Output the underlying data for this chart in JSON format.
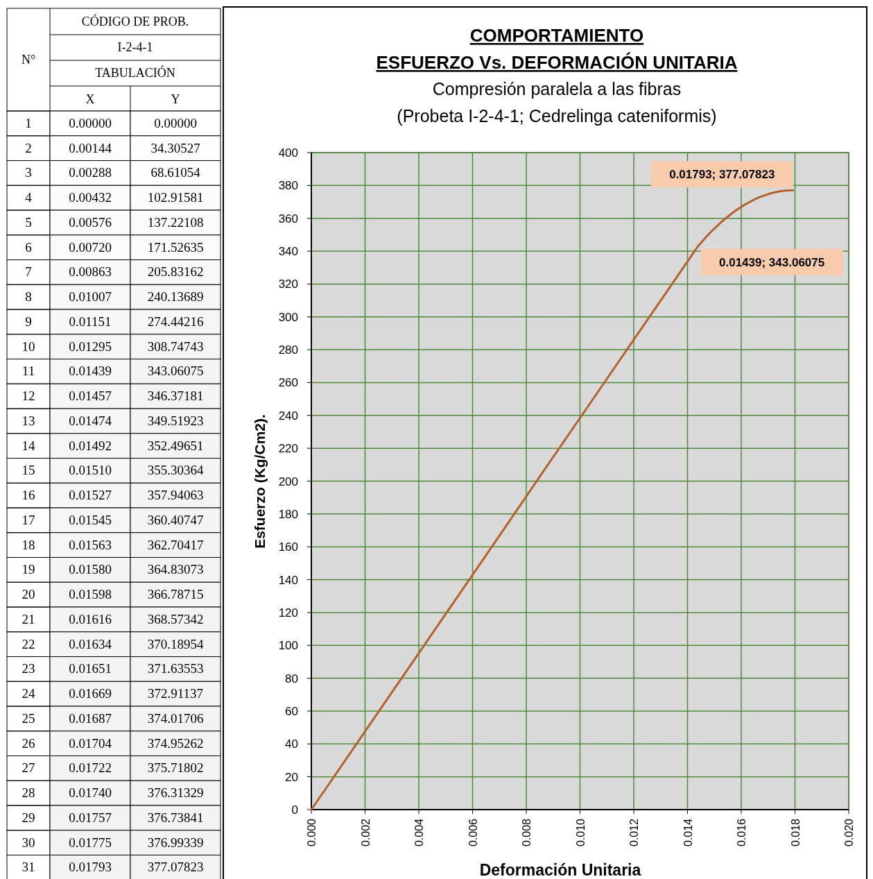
{
  "chart_data": [
    {
      "type": "heatmap",
      "title": "CÓDIGO DE PROB.",
      "subtitle": "I-2-4-1",
      "annotations": [
        "TABULACIÓN"
      ],
      "ylabel": "N°",
      "categories": [
        "X",
        "Y"
      ],
      "y_categories": [
        "1",
        "2",
        "3",
        "4",
        "5",
        "6",
        "7",
        "8",
        "9",
        "10",
        "11",
        "12",
        "13",
        "14",
        "15",
        "16",
        "17",
        "18",
        "19",
        "20",
        "21",
        "22",
        "23",
        "24",
        "25",
        "26",
        "27",
        "28",
        "29",
        "30",
        "31"
      ],
      "cells": [
        [
          0,
          0
        ],
        [
          0.00144,
          34.30527
        ],
        [
          0.00288,
          68.61054
        ],
        [
          0.00432,
          102.91581
        ],
        [
          0.00576,
          137.22108
        ],
        [
          0.0072,
          171.52635
        ],
        [
          0.00863,
          205.83162
        ],
        [
          0.01007,
          240.13689
        ],
        [
          0.01151,
          274.44216
        ],
        [
          0.01295,
          308.74743
        ],
        [
          0.01439,
          343.06075
        ],
        [
          0.01457,
          346.37181
        ],
        [
          0.01474,
          349.51923
        ],
        [
          0.01492,
          352.49651
        ],
        [
          0.0151,
          355.30364
        ],
        [
          0.01527,
          357.94063
        ],
        [
          0.01545,
          360.40747
        ],
        [
          0.01563,
          362.70417
        ],
        [
          0.0158,
          364.83073
        ],
        [
          0.01598,
          366.78715
        ],
        [
          0.01616,
          368.57342
        ],
        [
          0.01634,
          370.18954
        ],
        [
          0.01651,
          371.63553
        ],
        [
          0.01669,
          372.91137
        ],
        [
          0.01687,
          374.01706
        ],
        [
          0.01704,
          374.95262
        ],
        [
          0.01722,
          375.71802
        ],
        [
          0.0174,
          376.31329
        ],
        [
          0.01757,
          376.73841
        ],
        [
          0.01775,
          376.99339
        ],
        [
          0.01793,
          377.07823
        ]
      ],
      "cell_labels": [
        [
          "0.00000",
          "0.00000"
        ],
        [
          "0.00144",
          "34.30527"
        ],
        [
          "0.00288",
          "68.61054"
        ],
        [
          "0.00432",
          "102.91581"
        ],
        [
          "0.00576",
          "137.22108"
        ],
        [
          "0.00720",
          "171.52635"
        ],
        [
          "0.00863",
          "205.83162"
        ],
        [
          "0.01007",
          "240.13689"
        ],
        [
          "0.01151",
          "274.44216"
        ],
        [
          "0.01295",
          "308.74743"
        ],
        [
          "0.01439",
          "343.06075"
        ],
        [
          "0.01457",
          "346.37181"
        ],
        [
          "0.01474",
          "349.51923"
        ],
        [
          "0.01492",
          "352.49651"
        ],
        [
          "0.01510",
          "355.30364"
        ],
        [
          "0.01527",
          "357.94063"
        ],
        [
          "0.01545",
          "360.40747"
        ],
        [
          "0.01563",
          "362.70417"
        ],
        [
          "0.01580",
          "364.83073"
        ],
        [
          "0.01598",
          "366.78715"
        ],
        [
          "0.01616",
          "368.57342"
        ],
        [
          "0.01634",
          "370.18954"
        ],
        [
          "0.01651",
          "371.63553"
        ],
        [
          "0.01669",
          "372.91137"
        ],
        [
          "0.01687",
          "374.01706"
        ],
        [
          "0.01704",
          "374.95262"
        ],
        [
          "0.01722",
          "375.71802"
        ],
        [
          "0.01740",
          "376.31329"
        ],
        [
          "0.01757",
          "376.73841"
        ],
        [
          "0.01775",
          "376.99339"
        ],
        [
          "0.01793",
          "377.07823"
        ]
      ]
    },
    {
      "type": "line",
      "title": "COMPORTAMIENTO\nESFUERZO Vs. DEFORMACIÓN UNITARIA",
      "subtitle": "Compresión paralela a las fibras\n(Probeta I-2-4-1; Cedrelinga cateniformis)",
      "xlabel": "Deformación Unitaria",
      "ylabel": "Esfuerzo (Kg/Cm2).",
      "x": [
        0,
        0.00144,
        0.00288,
        0.00432,
        0.00576,
        0.0072,
        0.00863,
        0.01007,
        0.01151,
        0.01295,
        0.01439,
        0.01457,
        0.01474,
        0.01492,
        0.0151,
        0.01527,
        0.01545,
        0.01563,
        0.0158,
        0.01598,
        0.01616,
        0.01634,
        0.01651,
        0.01669,
        0.01687,
        0.01704,
        0.01722,
        0.0174,
        0.01757,
        0.01775,
        0.01793
      ],
      "series": [
        {
          "color": "#b3612d",
          "values": [
            0,
            34.30527,
            68.61054,
            102.91581,
            137.22108,
            171.52635,
            205.83162,
            240.13689,
            274.44216,
            308.74743,
            343.06075,
            346.37181,
            349.51923,
            352.49651,
            355.30364,
            357.94063,
            360.40747,
            362.70417,
            364.83073,
            366.78715,
            368.57342,
            370.18954,
            371.63553,
            372.91137,
            374.01706,
            374.95262,
            375.71802,
            376.31329,
            376.73841,
            376.99339,
            377.07823
          ]
        }
      ],
      "xlim": [
        0,
        0.02
      ],
      "xticks": [
        {
          "value": 0,
          "label": "0.000"
        },
        {
          "value": 0.002,
          "label": "0.002"
        },
        {
          "value": 0.004,
          "label": "0.004"
        },
        {
          "value": 0.006,
          "label": "0.006"
        },
        {
          "value": 0.008,
          "label": "0.008"
        },
        {
          "value": 0.01,
          "label": "0.010"
        },
        {
          "value": 0.012,
          "label": "0.012"
        },
        {
          "value": 0.014,
          "label": "0.014"
        },
        {
          "value": 0.016,
          "label": "0.016"
        },
        {
          "value": 0.018,
          "label": "0.018"
        },
        {
          "value": 0.02,
          "label": "0.020"
        }
      ],
      "ylim": [
        0,
        400
      ],
      "yticks": [
        0,
        20,
        40,
        60,
        80,
        100,
        120,
        140,
        160,
        180,
        200,
        220,
        240,
        260,
        280,
        300,
        320,
        340,
        360,
        380,
        400
      ],
      "grid": true,
      "annotations": [
        {
          "text": "0.01793; 377.07823",
          "x": 0.01793,
          "y": 377.07823
        },
        {
          "text": "0.01439; 343.06075",
          "x": 0.01439,
          "y": 343.06075
        }
      ]
    }
  ]
}
